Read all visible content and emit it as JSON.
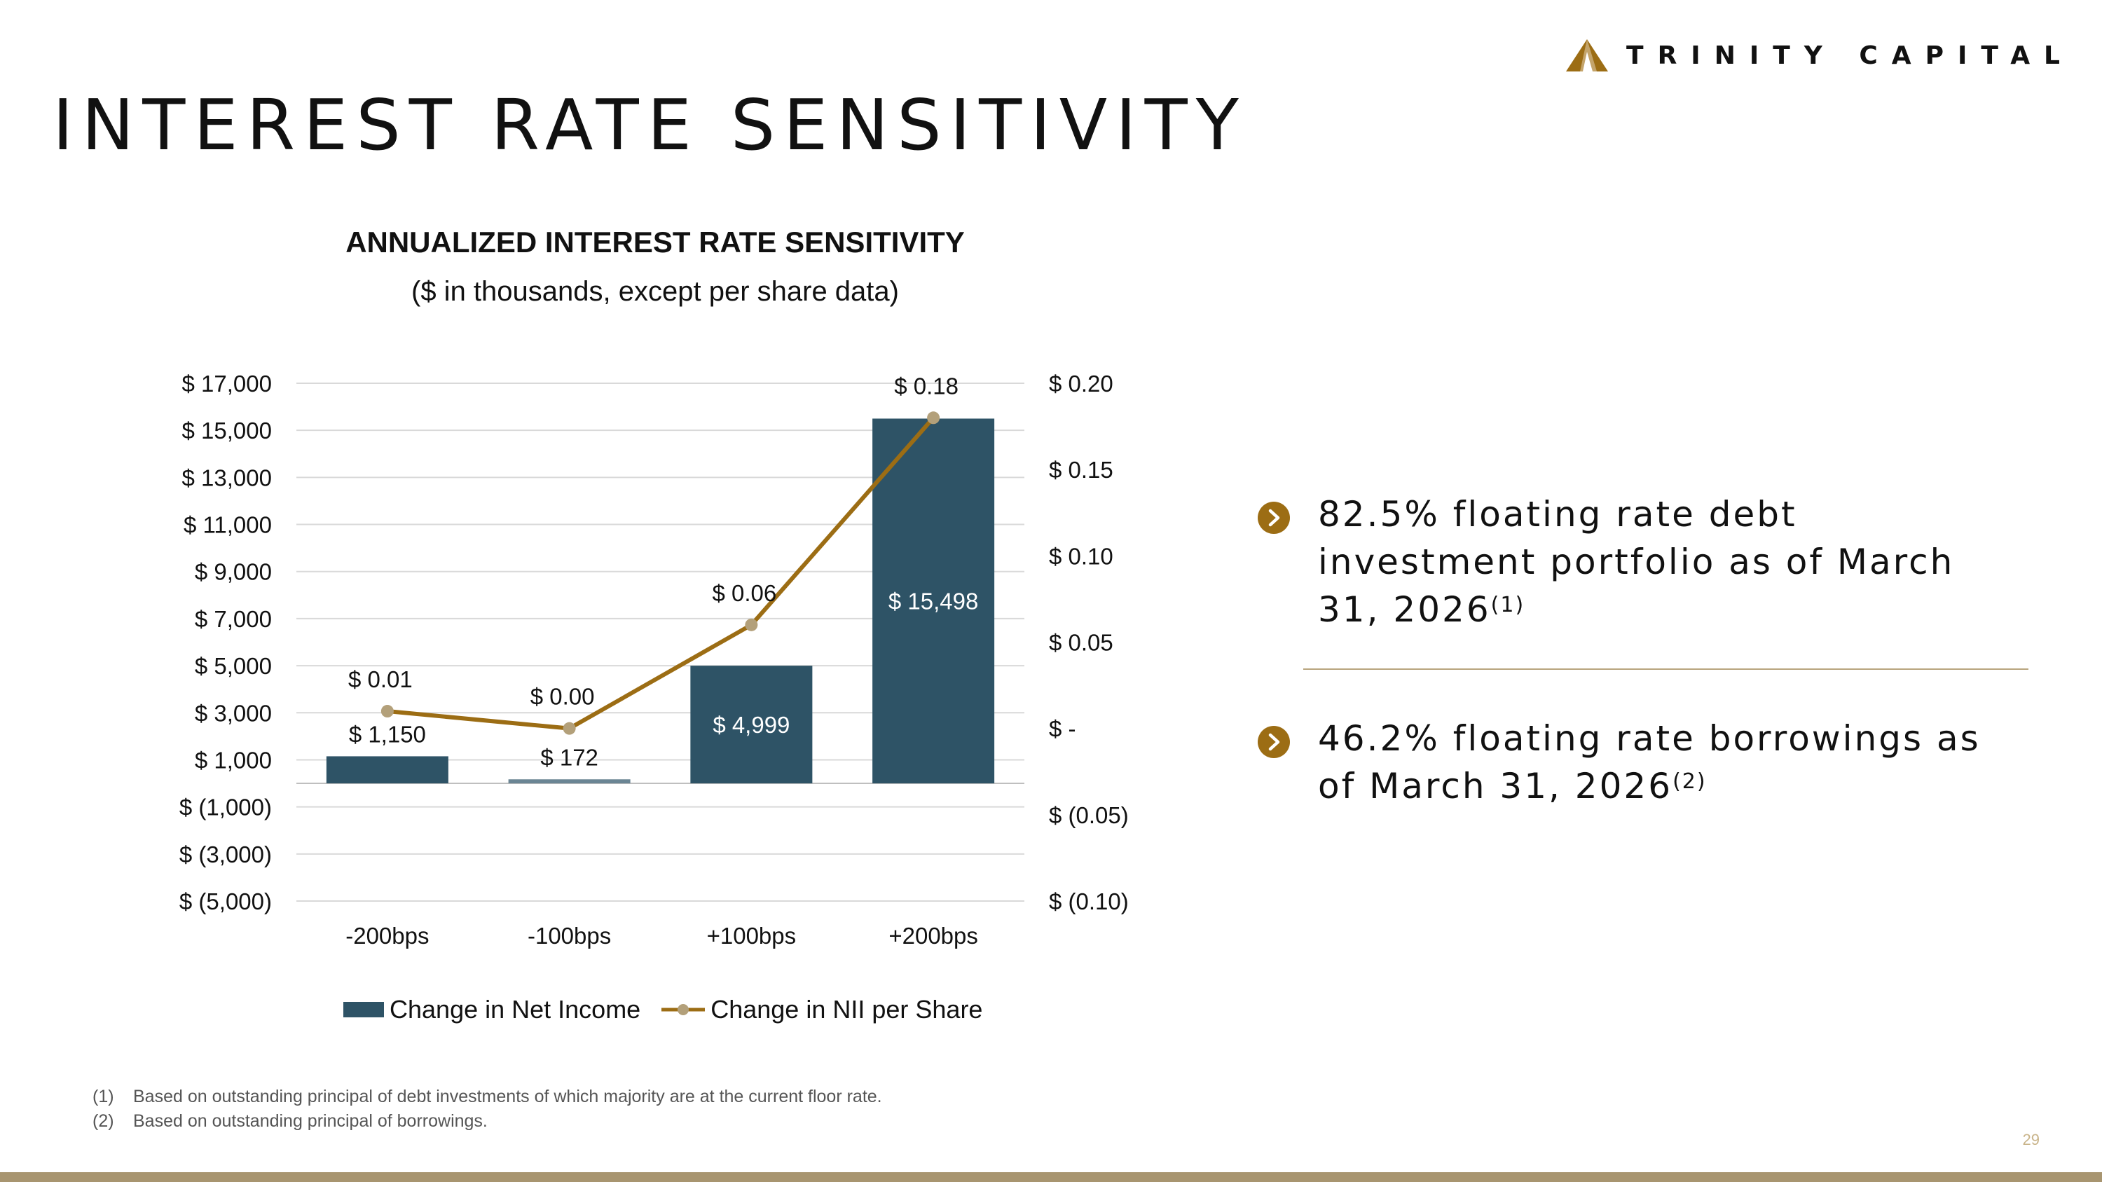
{
  "slide": {
    "title": "INTEREST RATE SENSITIVITY",
    "logo_text": "TRINITY CAPITAL",
    "page_number": "29",
    "colors": {
      "bar": "#2e5366",
      "line": "#9c6d14",
      "marker": "#b3a07a",
      "accent": "#a89570"
    }
  },
  "chart_data": {
    "type": "bar",
    "title": "ANNUALIZED INTEREST RATE SENSITIVITY",
    "subtitle": "($ in thousands, except per share data)",
    "categories": [
      "-200bps",
      "-100bps",
      "+100bps",
      "+200bps"
    ],
    "series": [
      {
        "name": "Change in Net Income",
        "type": "bar",
        "axis": "left",
        "values": [
          1150,
          172,
          4999,
          15498
        ],
        "labels": [
          "$ 1,150",
          "$ 172",
          "$ 4,999",
          "$ 15,498"
        ]
      },
      {
        "name": "Change in NII per Share",
        "type": "line",
        "axis": "right",
        "values": [
          0.01,
          0.0,
          0.06,
          0.18
        ],
        "labels": [
          "$ 0.01",
          "$ 0.00",
          "$ 0.06",
          "$ 0.18"
        ]
      }
    ],
    "y_left": {
      "range": [
        -5000,
        17000
      ],
      "ticks": [
        17000,
        15000,
        13000,
        11000,
        9000,
        7000,
        5000,
        3000,
        1000,
        -1000,
        -3000,
        -5000
      ],
      "tick_labels": [
        "$ 17,000",
        "$ 15,000",
        "$ 13,000",
        "$ 11,000",
        "$ 9,000",
        "$ 7,000",
        "$ 5,000",
        "$ 3,000",
        "$ 1,000",
        "$ (1,000)",
        "$ (3,000)",
        "$ (5,000)"
      ]
    },
    "y_right": {
      "range": [
        -0.1,
        0.2
      ],
      "ticks": [
        0.2,
        0.15,
        0.1,
        0.05,
        0,
        -0.05,
        -0.1
      ],
      "tick_labels": [
        "$ 0.20",
        "$ 0.15",
        "$ 0.10",
        "$ 0.05",
        "$ -",
        "$ (0.05)",
        "$ (0.10)"
      ]
    },
    "grid": true,
    "legend_position": "bottom"
  },
  "bullets": [
    {
      "text": "82.5% floating rate debt investment portfolio as of March 31, 2026",
      "note": "(1)"
    },
    {
      "text": "46.2% floating rate borrowings as of March 31, 2026",
      "note": "(2)"
    }
  ],
  "footnotes": [
    {
      "marker": "(1)",
      "text": "Based on outstanding principal of debt investments of which majority are at the current floor rate."
    },
    {
      "marker": "(2)",
      "text": "Based on outstanding principal of borrowings."
    }
  ]
}
